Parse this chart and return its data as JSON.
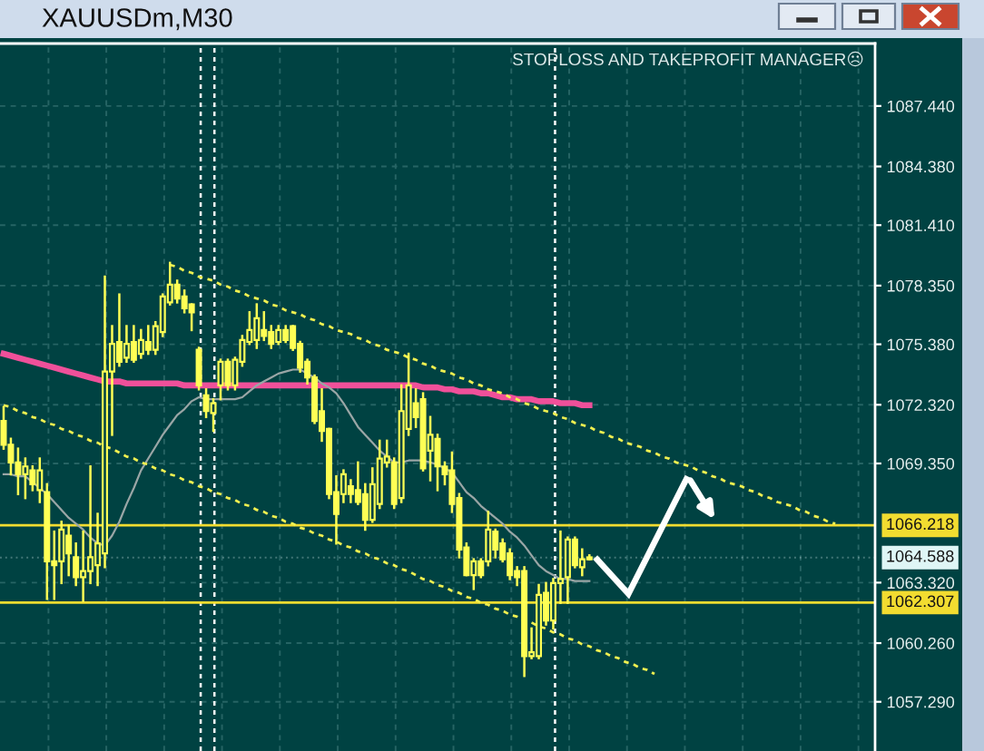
{
  "chart_data": {
    "type": "candlestick",
    "title": "XAUUSDm,M30",
    "annotations": [
      "STOPLOSS AND TAKEPROFIT MANAGER☹"
    ],
    "categories": [
      null,
      null,
      null,
      null,
      null,
      null,
      null,
      null,
      null,
      null,
      null,
      null,
      null,
      null,
      null,
      null,
      null,
      null,
      null,
      null,
      null,
      null,
      null,
      null,
      null,
      null,
      null,
      null,
      null,
      null,
      null,
      null,
      null,
      null,
      null,
      null,
      null,
      null,
      null,
      null,
      null,
      null,
      null,
      null,
      null,
      null,
      null,
      null,
      null,
      null,
      null,
      null,
      null,
      null,
      null,
      null,
      null,
      null,
      null,
      null,
      null,
      null,
      null,
      null,
      null,
      null,
      null,
      null,
      null,
      null,
      null,
      null,
      null,
      null,
      null,
      null,
      null,
      null,
      null,
      null,
      null,
      null,
      null,
      null,
      null,
      null,
      null,
      null,
      null,
      null,
      null,
      null,
      null,
      null,
      null,
      null,
      null,
      null,
      null,
      null,
      null,
      null,
      null,
      null,
      null,
      null,
      null,
      null,
      null,
      null,
      null,
      null,
      null,
      null,
      null,
      null,
      null,
      null,
      null,
      null,
      null
    ],
    "color": "#ffff55",
    "ohlc": [
      [
        1071.5,
        1072.2,
        1070.1,
        1070.3
      ],
      [
        1070.3,
        1070.6,
        1068.8,
        1069.4
      ],
      [
        1069.4,
        1070.1,
        1067.8,
        1068.8
      ],
      [
        1068.8,
        1069.6,
        1067.6,
        1069.2
      ],
      [
        1069.0,
        1069.2,
        1068.0,
        1068.3
      ],
      [
        1068.0,
        1069.6,
        1067.4,
        1069.0
      ],
      [
        1067.9,
        1068.3,
        1062.5,
        1064.4
      ],
      [
        1064.4,
        1065.9,
        1062.5,
        1064.2
      ],
      [
        1064.4,
        1066.4,
        1063.3,
        1066.0
      ],
      [
        1065.7,
        1066.2,
        1063.7,
        1064.8
      ],
      [
        1064.6,
        1065.3,
        1063.2,
        1063.6
      ],
      [
        1063.6,
        1065.9,
        1062.4,
        1063.9
      ],
      [
        1063.9,
        1069.2,
        1063.3,
        1064.6
      ],
      [
        1064.2,
        1066.8,
        1063.2,
        1065.3
      ],
      [
        1064.8,
        1078.8,
        1064.1,
        1074.0
      ],
      [
        1074.0,
        1076.3,
        1070.8,
        1075.4
      ],
      [
        1075.5,
        1077.9,
        1074.3,
        1074.5
      ],
      [
        1074.7,
        1076.3,
        1074.5,
        1075.4
      ],
      [
        1075.5,
        1076.3,
        1074.5,
        1074.6
      ],
      [
        1074.9,
        1076.1,
        1074.7,
        1075.6
      ],
      [
        1075.5,
        1076.3,
        1074.9,
        1075.1
      ],
      [
        1075.1,
        1076.5,
        1074.9,
        1076.3
      ],
      [
        1076.0,
        1077.9,
        1075.8,
        1077.8
      ],
      [
        1077.5,
        1079.5,
        1077.4,
        1078.4
      ],
      [
        1078.4,
        1078.6,
        1077.5,
        1077.7
      ],
      [
        1077.8,
        1078.1,
        1077.0,
        1077.2
      ],
      [
        1077.4,
        1077.4,
        1076.1,
        1077.0
      ],
      [
        1075.1,
        1075.2,
        1073.1,
        1073.3
      ],
      [
        1072.8,
        1073.1,
        1071.7,
        1072.0
      ],
      [
        1071.9,
        1072.6,
        1071.0,
        1072.4
      ],
      [
        1073.3,
        1074.6,
        1072.6,
        1074.5
      ],
      [
        1074.5,
        1074.6,
        1073.1,
        1073.3
      ],
      [
        1073.3,
        1074.7,
        1073.1,
        1074.6
      ],
      [
        1074.5,
        1075.8,
        1074.3,
        1075.6
      ],
      [
        1075.5,
        1077.0,
        1075.4,
        1076.1
      ],
      [
        1075.6,
        1077.4,
        1075.2,
        1076.7
      ],
      [
        1076.1,
        1077.0,
        1075.6,
        1075.8
      ],
      [
        1076.0,
        1076.3,
        1075.2,
        1075.4
      ],
      [
        1075.5,
        1076.3,
        1075.4,
        1076.1
      ],
      [
        1076.1,
        1076.3,
        1075.5,
        1075.6
      ],
      [
        1076.3,
        1076.3,
        1075.1,
        1075.2
      ],
      [
        1075.4,
        1075.5,
        1074.0,
        1074.2
      ],
      [
        1074.5,
        1074.6,
        1073.4,
        1073.7
      ],
      [
        1073.7,
        1073.8,
        1071.4,
        1071.5
      ],
      [
        1072.0,
        1073.1,
        1070.5,
        1071.0
      ],
      [
        1071.1,
        1071.1,
        1067.6,
        1067.8
      ],
      [
        1067.9,
        1068.7,
        1065.3,
        1066.8
      ],
      [
        1067.8,
        1069.0,
        1067.4,
        1068.8
      ],
      [
        1068.2,
        1068.5,
        1067.4,
        1067.8
      ],
      [
        1068.0,
        1069.4,
        1067.3,
        1067.4
      ],
      [
        1067.8,
        1068.3,
        1066.0,
        1066.5
      ],
      [
        1066.5,
        1069.1,
        1066.4,
        1068.3
      ],
      [
        1067.3,
        1070.5,
        1067.1,
        1069.6
      ],
      [
        1069.4,
        1070.5,
        1069.2,
        1069.7
      ],
      [
        1069.4,
        1069.6,
        1067.1,
        1067.3
      ],
      [
        1067.6,
        1073.3,
        1067.4,
        1072.0
      ],
      [
        1071.1,
        1074.9,
        1070.8,
        1073.3
      ],
      [
        1072.4,
        1073.1,
        1071.2,
        1071.7
      ],
      [
        1072.6,
        1072.9,
        1069.0,
        1069.1
      ],
      [
        1070.0,
        1071.7,
        1068.5,
        1070.8
      ],
      [
        1070.6,
        1070.8,
        1068.0,
        1069.2
      ],
      [
        1069.2,
        1069.4,
        1068.3,
        1068.8
      ],
      [
        1069.0,
        1069.9,
        1066.9,
        1067.3
      ],
      [
        1067.6,
        1067.8,
        1064.6,
        1065.0
      ],
      [
        1065.1,
        1065.3,
        1063.7,
        1063.7
      ],
      [
        1063.7,
        1064.5,
        1063.0,
        1064.4
      ],
      [
        1064.4,
        1064.5,
        1063.6,
        1063.7
      ],
      [
        1064.4,
        1066.9,
        1064.2,
        1066.0
      ],
      [
        1065.9,
        1066.0,
        1064.6,
        1065.0
      ],
      [
        1065.3,
        1065.5,
        1064.4,
        1064.5
      ],
      [
        1064.8,
        1065.0,
        1063.5,
        1063.7
      ],
      [
        1063.9,
        1064.1,
        1063.2,
        1063.6
      ],
      [
        1063.9,
        1064.1,
        1058.6,
        1059.6
      ],
      [
        1059.6,
        1061.0,
        1059.5,
        1059.8
      ],
      [
        1059.6,
        1063.2,
        1059.5,
        1062.7
      ],
      [
        1062.8,
        1063.3,
        1061.2,
        1061.4
      ],
      [
        1061.4,
        1063.5,
        1061.0,
        1063.3
      ],
      [
        1063.3,
        1065.9,
        1062.3,
        1063.5
      ],
      [
        1063.6,
        1065.6,
        1062.3,
        1065.5
      ],
      [
        1065.5,
        1065.6,
        1064.1,
        1064.2
      ],
      [
        1064.1,
        1065.0,
        1063.7,
        1064.5
      ],
      [
        1064.5,
        1064.7,
        1064.5,
        1064.6
      ],
      null,
      null,
      null,
      null,
      null,
      null,
      null,
      null,
      null,
      null,
      null,
      null,
      null,
      null,
      null,
      null,
      null,
      null,
      null,
      null,
      null,
      null,
      null,
      null,
      null,
      null,
      null,
      null,
      null,
      null,
      null,
      null,
      null,
      null,
      null,
      null,
      null,
      null,
      null
    ],
    "series": [
      {
        "type": "line",
        "color": "#f0509a",
        "line_style": "solid",
        "values": [
          1074.9,
          1074.8,
          1074.7,
          1074.6,
          1074.5,
          1074.4,
          1074.3,
          1074.2,
          1074.1,
          1074.0,
          1073.9,
          1073.8,
          1073.7,
          1073.6,
          1073.5,
          1073.5,
          1073.5,
          1073.4,
          1073.4,
          1073.4,
          1073.4,
          1073.4,
          1073.4,
          1073.4,
          1073.4,
          1073.3,
          1073.3,
          1073.3,
          1073.3,
          1073.3,
          1073.3,
          1073.3,
          1073.3,
          1073.3,
          1073.3,
          1073.3,
          1073.3,
          1073.3,
          1073.3,
          1073.3,
          1073.3,
          1073.3,
          1073.3,
          1073.3,
          1073.3,
          1073.3,
          1073.3,
          1073.3,
          1073.3,
          1073.3,
          1073.3,
          1073.3,
          1073.3,
          1073.3,
          1073.3,
          1073.3,
          1073.3,
          1073.3,
          1073.2,
          1073.2,
          1073.2,
          1073.1,
          1073.1,
          1073.0,
          1073.0,
          1073.0,
          1072.9,
          1072.9,
          1072.8,
          1072.7,
          1072.7,
          1072.6,
          1072.6,
          1072.6,
          1072.5,
          1072.5,
          1072.5,
          1072.4,
          1072.4,
          1072.4,
          1072.3,
          1072.3,
          null,
          null,
          null,
          null,
          null,
          null,
          null,
          null,
          null,
          null,
          null,
          null,
          null,
          null,
          null,
          null,
          null,
          null,
          null,
          null,
          null,
          null,
          null,
          null,
          null,
          null,
          null,
          null,
          null,
          null,
          null,
          null,
          null,
          null,
          null,
          null,
          null,
          null,
          null
        ]
      },
      {
        "type": "line",
        "color": "#9aa6a6",
        "line_style": "solid",
        "values": [
          1068.8,
          1068.8,
          1068.7,
          1068.7,
          1068.4,
          1068.1,
          1067.8,
          1067.4,
          1067.0,
          1066.6,
          1066.3,
          1066.0,
          1065.6,
          1065.3,
          1065.2,
          1065.7,
          1066.4,
          1067.3,
          1068.1,
          1069.0,
          1069.6,
          1070.2,
          1070.8,
          1071.3,
          1071.8,
          1072.1,
          1072.5,
          1072.7,
          1072.6,
          1072.6,
          1072.6,
          1072.6,
          1072.6,
          1072.7,
          1073.0,
          1073.3,
          1073.5,
          1073.7,
          1073.9,
          1074.0,
          1074.1,
          1074.1,
          1073.9,
          1073.7,
          1073.4,
          1073.2,
          1072.9,
          1072.4,
          1071.8,
          1071.2,
          1070.8,
          1070.4,
          1070.0,
          1069.7,
          1069.4,
          1069.4,
          1069.5,
          1069.5,
          1069.5,
          1069.4,
          1069.3,
          1069.1,
          1068.9,
          1068.4,
          1067.9,
          1067.6,
          1067.2,
          1066.9,
          1066.6,
          1066.3,
          1065.9,
          1065.6,
          1065.2,
          1064.7,
          1064.2,
          1063.9,
          1063.7,
          1063.5,
          1063.5,
          1063.4,
          1063.4,
          1063.4,
          null,
          null,
          null,
          null,
          null,
          null,
          null,
          null,
          null,
          null,
          null,
          null,
          null,
          null,
          null,
          null,
          null,
          null,
          null,
          null,
          null,
          null,
          null,
          null,
          null,
          null,
          null,
          null,
          null,
          null,
          null,
          null,
          null,
          null,
          null,
          null,
          null,
          null,
          null
        ]
      },
      {
        "type": "line",
        "color": "#f0f050",
        "line_style": "dashed",
        "values": [
          null,
          null,
          null,
          null,
          null,
          null,
          null,
          null,
          null,
          null,
          null,
          null,
          null,
          null,
          null,
          null,
          null,
          null,
          null,
          null,
          null,
          null,
          null,
          1079.4,
          1079.3,
          1079.1,
          1079.0,
          1078.8,
          1078.7,
          1078.6,
          1078.4,
          1078.3,
          1078.1,
          1078.0,
          1077.8,
          1077.7,
          1077.6,
          1077.4,
          1077.3,
          1077.1,
          1077.0,
          1076.9,
          1076.7,
          1076.6,
          1076.4,
          1076.3,
          1076.1,
          1076.0,
          1075.9,
          1075.7,
          1075.6,
          1075.4,
          1075.3,
          1075.1,
          1075.0,
          1074.9,
          1074.7,
          1074.6,
          1074.4,
          1074.3,
          1074.1,
          1074.0,
          1073.9,
          1073.7,
          1073.6,
          1073.4,
          1073.3,
          1073.1,
          1073.0,
          1072.9,
          1072.7,
          1072.6,
          1072.4,
          1072.3,
          1072.1,
          1072.0,
          1071.9,
          1071.7,
          1071.6,
          1071.4,
          1071.3,
          1071.2,
          1071.0,
          1070.9,
          1070.7,
          1070.6,
          1070.4,
          1070.3,
          1070.2,
          1070.0,
          1069.9,
          1069.7,
          1069.6,
          1069.4,
          1069.3,
          1069.2,
          1069.0,
          1068.9,
          1068.7,
          1068.6,
          1068.4,
          1068.3,
          1068.2,
          1068.0,
          1067.9,
          1067.7,
          1067.6,
          1067.4,
          1067.3,
          1067.2,
          1067.0,
          1066.9,
          1066.7,
          1066.6,
          1066.4,
          1066.3,
          null,
          null,
          null,
          null,
          null
        ]
      },
      {
        "type": "line",
        "color": "#f0f050",
        "line_style": "dashed",
        "values": [
          1072.3,
          1072.2,
          1072.0,
          1071.9,
          1071.7,
          1071.6,
          1071.4,
          1071.3,
          1071.1,
          1071.0,
          1070.8,
          1070.7,
          1070.5,
          1070.4,
          1070.2,
          1070.1,
          1069.9,
          1069.7,
          1069.6,
          1069.4,
          1069.3,
          1069.1,
          1069.0,
          1068.8,
          1068.7,
          1068.5,
          1068.4,
          1068.2,
          1068.1,
          1067.9,
          1067.8,
          1067.6,
          1067.5,
          1067.3,
          1067.2,
          1067.0,
          1066.9,
          1066.7,
          1066.6,
          1066.4,
          1066.3,
          1066.1,
          1066.0,
          1065.8,
          1065.7,
          1065.5,
          1065.4,
          1065.2,
          1065.1,
          1064.9,
          1064.8,
          1064.6,
          1064.5,
          1064.3,
          1064.2,
          1064.0,
          1063.9,
          1063.7,
          1063.5,
          1063.4,
          1063.2,
          1063.1,
          1062.9,
          1062.8,
          1062.6,
          1062.5,
          1062.3,
          1062.2,
          1062.0,
          1061.9,
          1061.7,
          1061.6,
          1061.4,
          1061.3,
          1061.1,
          1061.0,
          1060.8,
          1060.7,
          1060.5,
          1060.4,
          1060.2,
          1060.1,
          1059.9,
          1059.8,
          1059.6,
          1059.5,
          1059.3,
          1059.2,
          1059.0,
          1058.9,
          1058.7,
          null,
          null,
          null,
          null,
          null,
          null,
          null,
          null,
          null,
          null,
          null,
          null,
          null,
          null,
          null,
          null,
          null,
          null,
          null,
          null,
          null,
          null,
          null,
          null,
          null,
          null,
          null,
          null,
          null,
          null
        ]
      }
    ],
    "ref_lines": [
      {
        "axis": "y",
        "value": 1066.218,
        "label": "1066.218",
        "color": "#f2dc30",
        "line_style": "solid"
      },
      {
        "axis": "y",
        "value": 1064.588,
        "label": "1064.588",
        "color": "#dff6f6",
        "line_style": "dotted"
      },
      {
        "axis": "y",
        "value": 1062.307,
        "label": "1062.307",
        "color": "#f2dc30",
        "line_style": "solid"
      }
    ],
    "ylim": [
      1054.8,
      1090.6
    ],
    "yticks": [
      {
        "value": 1087.44,
        "label": "1087.440"
      },
      {
        "value": 1084.38,
        "label": "1084.380"
      },
      {
        "value": 1081.41,
        "label": "1081.410"
      },
      {
        "value": 1078.35,
        "label": "1078.350"
      },
      {
        "value": 1075.38,
        "label": "1075.380"
      },
      {
        "value": 1072.32,
        "label": "1072.320"
      },
      {
        "value": 1069.35,
        "label": "1069.350"
      },
      {
        "value": 1063.32,
        "label": "1063.320"
      },
      {
        "value": 1060.26,
        "label": "1060.260"
      },
      {
        "value": 1057.29,
        "label": "1057.290"
      }
    ],
    "grid": true,
    "tick_labels": "y"
  }
}
